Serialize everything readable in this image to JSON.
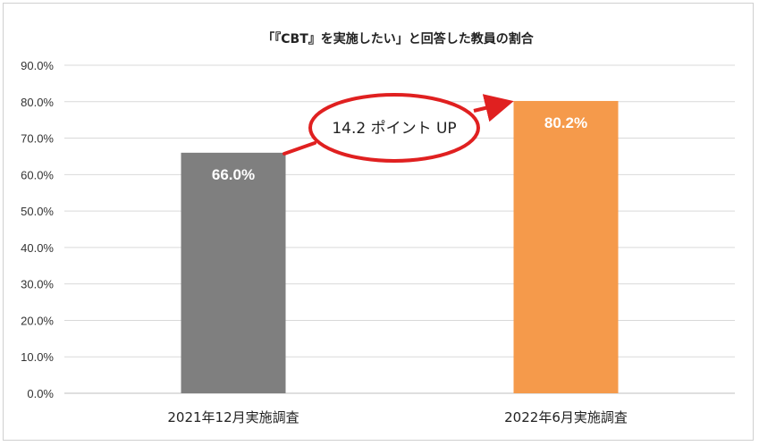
{
  "chart_data": {
    "type": "bar",
    "title": "「『CBT』を実施したい」と回答した教員の割合",
    "xlabel": "",
    "ylabel": "",
    "categories": [
      "2021年12月実施調査",
      "2022年6月実施調査"
    ],
    "values": [
      66.0,
      80.2
    ],
    "data_labels": [
      "66.0%",
      "80.2%"
    ],
    "bar_colors": [
      "#7f7f7f",
      "#f59a4b"
    ],
    "ylim": [
      0,
      90
    ],
    "yticks": [
      "0.0%",
      "10.0%",
      "20.0%",
      "30.0%",
      "40.0%",
      "50.0%",
      "60.0%",
      "70.0%",
      "80.0%",
      "90.0%"
    ],
    "ytick_values": [
      0,
      10,
      20,
      30,
      40,
      50,
      60,
      70,
      80,
      90
    ],
    "grid": true,
    "annotation": {
      "text": "14.2 ポイント UP",
      "color": "#e02020"
    }
  }
}
